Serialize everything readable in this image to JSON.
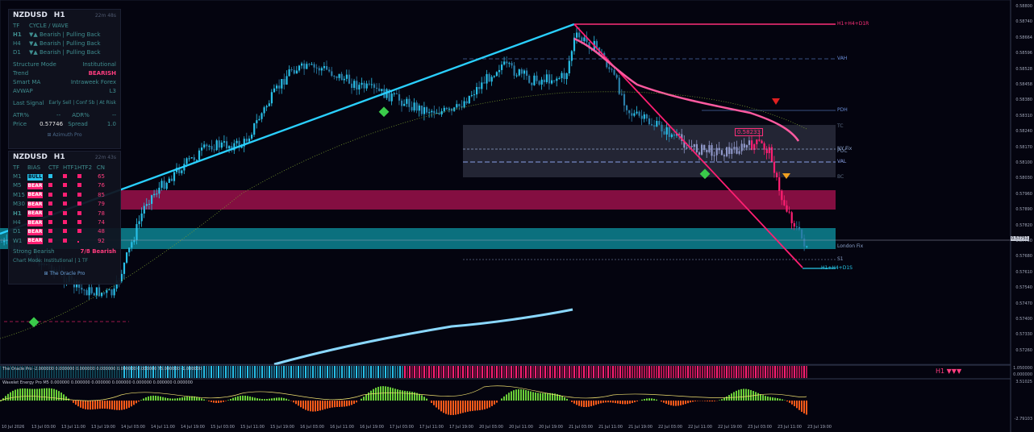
{
  "panel_top": {
    "symbol": "NZDUSD",
    "timeframe": "H1",
    "timer": "22m 48s",
    "header_tf": "TF",
    "header_cycle": "CYCLE / WAVE",
    "cycles": [
      {
        "tf": "H1",
        "text": "▼▲ Bearish | Pulling Back"
      },
      {
        "tf": "H4",
        "text": "▼▲ Bearish | Pulling Back"
      },
      {
        "tf": "D1",
        "text": "▼▲ Bearish | Pulling Back"
      }
    ],
    "rows": [
      {
        "k": "Structure Mode",
        "v": "Institutional"
      },
      {
        "k": "Trend",
        "v": "BEARISH"
      },
      {
        "k": "Smart MA",
        "v": "Intraweek Forex"
      },
      {
        "k": "AVWAP",
        "v": "L3"
      }
    ],
    "last_signal_label": "Last Signal",
    "last_signal_value": "Early Sell | Conf 5b | At Risk",
    "atr_label": "ATR%",
    "atr_value": "--",
    "adr_label": "ADR%",
    "adr_value": "--",
    "price_label": "Price",
    "price_value": "0.57746",
    "spread_label": "Spread",
    "spread_value": "1.0",
    "footer": "Azimuth Pro"
  },
  "panel_bias": {
    "symbol": "NZDUSD",
    "timeframe": "H1",
    "timer": "22m 43s",
    "headers": [
      "TF",
      "BIAS",
      "CTF",
      "HTF1",
      "HTF2",
      "CN"
    ],
    "rows": [
      {
        "tf": "M1",
        "bias": "BULL",
        "cn": "65"
      },
      {
        "tf": "M5",
        "bias": "BEAR",
        "cn": "76"
      },
      {
        "tf": "M15",
        "bias": "BEAR",
        "cn": "85"
      },
      {
        "tf": "M30",
        "bias": "BEAR",
        "cn": "79"
      },
      {
        "tf": "H1",
        "bias": "BEAR",
        "cn": "78"
      },
      {
        "tf": "H4",
        "bias": "BEAR",
        "cn": "74"
      },
      {
        "tf": "D1",
        "bias": "BEAR",
        "cn": "48"
      },
      {
        "tf": "W1",
        "bias": "BEAR",
        "cn": "92"
      }
    ],
    "summary_left": "Strong Bearish",
    "summary_right": "7/8 Bearish",
    "chart_mode": "Chart Mode: Institutional | 1 TF",
    "footer": "The Oracle Pro"
  },
  "levels": {
    "h1_h4_d1r": "H1+H4+D1R",
    "vah": "VAH",
    "pdh": "PDH",
    "tc": "TC",
    "ny_fix": "NY Fix",
    "val": "VAL",
    "poc": "POC",
    "bc": "BC",
    "london_fix": "London Fix",
    "s1": "S1",
    "h1_h4_d1s": "H1+H4+D1S",
    "price_tag": "0.58233",
    "current_price_tag": "0.57751"
  },
  "price_axis": [
    "0.58800",
    "0.58740",
    "0.58664",
    "0.58596",
    "0.58528",
    "0.58458",
    "0.58380",
    "0.58310",
    "0.58240",
    "0.58170",
    "0.58100",
    "0.58030",
    "0.57960",
    "0.57890",
    "0.57820",
    "0.57750",
    "0.57680",
    "0.57610",
    "0.57540",
    "0.57470",
    "0.57400",
    "0.57330",
    "0.57260"
  ],
  "time_axis": [
    "10 Jul 2026",
    "13 Jul 03:00",
    "13 Jul 11:00",
    "13 Jul 19:00",
    "14 Jul 03:00",
    "14 Jul 11:00",
    "14 Jul 19:00",
    "15 Jul 03:00",
    "15 Jul 11:00",
    "15 Jul 19:00",
    "16 Jul 03:00",
    "16 Jul 11:00",
    "16 Jul 19:00",
    "17 Jul 03:00",
    "17 Jul 11:00",
    "17 Jul 19:00",
    "20 Jul 03:00",
    "20 Jul 11:00",
    "20 Jul 19:00",
    "21 Jul 03:00",
    "21 Jul 11:00",
    "21 Jul 19:00",
    "22 Jul 03:00",
    "22 Jul 11:00",
    "22 Jul 19:00",
    "23 Jul 03:00",
    "23 Jul 11:00",
    "23 Jul 19:00"
  ],
  "oracle_indicator": {
    "label": "The Oracle Pro -2.000000 0.000000 0.000000 0.000000 0.000000 0.000000 75.000000 -1.000000",
    "right_label": "H1 ▼▼▼",
    "axis": [
      "1.050000",
      "0.000000",
      "-0.050000"
    ]
  },
  "wavelet_indicator": {
    "label": "Wavelet Energy Pro M5 0.000000 0.000000 0.000000 0.000000 0.000000 0.000000 0.000000",
    "axis": [
      "3.51025",
      "-2.79103"
    ]
  },
  "colors": {
    "bull": "#28c0e8",
    "bear": "#ff1f72",
    "background": "#04040f",
    "text": "#3f8d8f"
  }
}
